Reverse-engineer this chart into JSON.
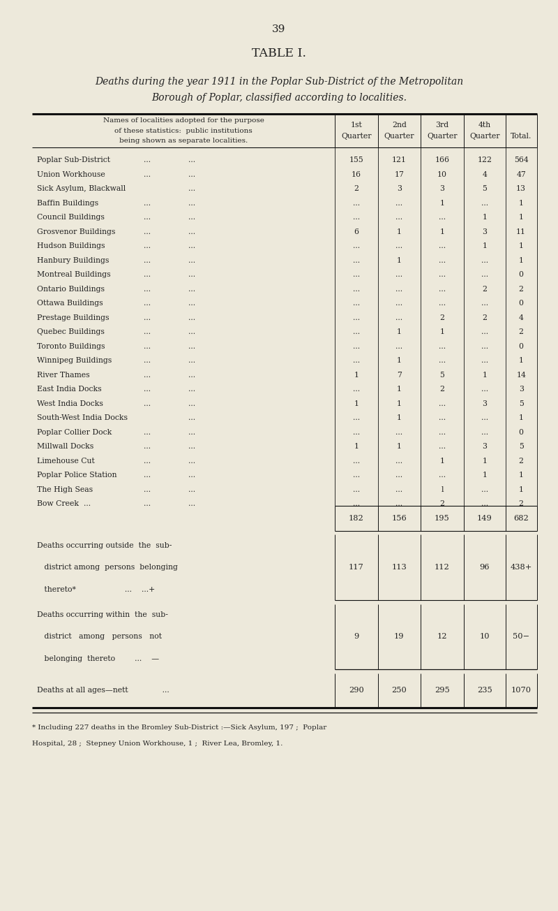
{
  "page_number": "39",
  "table_title": "TABLE I.",
  "subtitle_line1": "Deaths during the year 1911 in the Poplar Sub-District of the Metropolitan",
  "subtitle_line2": "Borough of Poplar, classified according to localities.",
  "header_col_lines": [
    "Names of localities adopted for the purpose",
    "of these statistics:  public institutions",
    "being shown as separate localities."
  ],
  "col_headers": [
    "1st",
    "2nd",
    "3rd",
    "4th",
    ""
  ],
  "col_headers2": [
    "Quarter",
    "Quarter",
    "Quarter",
    "Quarter",
    "Total."
  ],
  "rows": [
    {
      "name": "Poplar Sub-District",
      "dots1": "...",
      "dots2": "...",
      "q1": "155",
      "q2": "121",
      "q3": "166",
      "q4": "122",
      "total": "564"
    },
    {
      "name": "Union Workhouse",
      "dots1": "...",
      "dots2": "...",
      "q1": "16",
      "q2": "17",
      "q3": "10",
      "q4": "4",
      "total": "47"
    },
    {
      "name": "Sick Asylum, Blackwall",
      "dots1": "",
      "dots2": "...",
      "q1": "2",
      "q2": "3",
      "q3": "3",
      "q4": "5",
      "total": "13"
    },
    {
      "name": "Baffin Buildings",
      "dots1": "...",
      "dots2": "...",
      "q1": "...",
      "q2": "...",
      "q3": "1",
      "q4": "...",
      "total": "1"
    },
    {
      "name": "Council Buildings",
      "dots1": "...",
      "dots2": "...",
      "q1": "...",
      "q2": "...",
      "q3": "...",
      "q4": "1",
      "total": "1"
    },
    {
      "name": "Grosvenor Buildings",
      "dots1": "...",
      "dots2": "...",
      "q1": "6",
      "q2": "1",
      "q3": "1",
      "q4": "3",
      "total": "11"
    },
    {
      "name": "Hudson Buildings",
      "dots1": "...",
      "dots2": "...",
      "q1": "...",
      "q2": "...",
      "q3": "...",
      "q4": "1",
      "total": "1"
    },
    {
      "name": "Hanbury Buildings",
      "dots1": "...",
      "dots2": "...",
      "q1": "...",
      "q2": "1",
      "q3": "...",
      "q4": "...",
      "total": "1"
    },
    {
      "name": "Montreal Buildings",
      "dots1": "...",
      "dots2": "...",
      "q1": "...",
      "q2": "...",
      "q3": "...",
      "q4": "...",
      "total": "0"
    },
    {
      "name": "Ontario Buildings",
      "dots1": "...",
      "dots2": "...",
      "q1": "...",
      "q2": "...",
      "q3": "...",
      "q4": "2",
      "total": "2"
    },
    {
      "name": "Ottawa Buildings",
      "dots1": "...",
      "dots2": "...",
      "q1": "...",
      "q2": "...",
      "q3": "...",
      "q4": "...",
      "total": "0"
    },
    {
      "name": "Prestage Buildings",
      "dots1": "...",
      "dots2": "...",
      "q1": "...",
      "q2": "...",
      "q3": "2",
      "q4": "2",
      "total": "4"
    },
    {
      "name": "Quebec Buildings",
      "dots1": "...",
      "dots2": "...",
      "q1": "...",
      "q2": "1",
      "q3": "1",
      "q4": "...",
      "total": "2"
    },
    {
      "name": "Toronto Buildings",
      "dots1": "...",
      "dots2": "...",
      "q1": "...",
      "q2": "...",
      "q3": "...",
      "q4": "...",
      "total": "0"
    },
    {
      "name": "Winnipeg Buildings",
      "dots1": "...",
      "dots2": "...",
      "q1": "...",
      "q2": "1",
      "q3": "...",
      "q4": "...",
      "total": "1"
    },
    {
      "name": "River Thames",
      "dots1": "...",
      "dots2": "...",
      "q1": "1",
      "q2": "7",
      "q3": "5",
      "q4": "1",
      "total": "14"
    },
    {
      "name": "East India Docks",
      "dots1": "...",
      "dots2": "...",
      "q1": "...",
      "q2": "1",
      "q3": "2",
      "q4": "...",
      "total": "3"
    },
    {
      "name": "West India Docks",
      "dots1": "...",
      "dots2": "...",
      "q1": "1",
      "q2": "1",
      "q3": "...",
      "q4": "3",
      "total": "5"
    },
    {
      "name": "South-West India Docks",
      "dots1": "",
      "dots2": "...",
      "q1": "...",
      "q2": "1",
      "q3": "...",
      "q4": "...",
      "total": "1"
    },
    {
      "name": "Poplar Collier Dock",
      "dots1": "...",
      "dots2": "...",
      "q1": "...",
      "q2": "...",
      "q3": "...",
      "q4": "...",
      "total": "0"
    },
    {
      "name": "Millwall Docks",
      "dots1": "...",
      "dots2": "...",
      "q1": "1",
      "q2": "1",
      "q3": "...",
      "q4": "3",
      "total": "5"
    },
    {
      "name": "Limehouse Cut",
      "dots1": "...",
      "dots2": "...",
      "q1": "...",
      "q2": "...",
      "q3": "1",
      "q4": "1",
      "total": "2"
    },
    {
      "name": "Poplar Police Station",
      "dots1": "...",
      "dots2": "...",
      "q1": "...",
      "q2": "...",
      "q3": "...",
      "q4": "1",
      "total": "1"
    },
    {
      "name": "The High Seas",
      "dots1": "...",
      "dots2": "...",
      "q1": "...",
      "q2": "...",
      "q3": "l",
      "q4": "...",
      "total": "1"
    },
    {
      "name": "Bow Creek  ...",
      "dots1": "...",
      "dots2": "...",
      "q1": "...",
      "q2": "...",
      "q3": "2",
      "q4": "...",
      "total": "2"
    }
  ],
  "subtotal": {
    "q1": "182",
    "q2": "156",
    "q3": "195",
    "q4": "149",
    "total": "682"
  },
  "outside_label": [
    "Deaths occurring outside  the  sub-",
    "   district among  persons  belonging",
    "   thereto*                    ...    ...+"
  ],
  "outside": {
    "q1": "117",
    "q2": "113",
    "q3": "112",
    "q4": "96",
    "total": "438+"
  },
  "within_label": [
    "Deaths occurring within  the  sub-",
    "   district   among   persons   not",
    "   belonging  thereto        ...    —"
  ],
  "within": {
    "q1": "9",
    "q2": "19",
    "q3": "12",
    "q4": "10",
    "total": "50−"
  },
  "nett_label": "Deaths at all ages—nett              ...",
  "nett": {
    "q1": "290",
    "q2": "250",
    "q3": "295",
    "q4": "235",
    "total": "1070"
  },
  "footnote_line1": "* Including 227 deaths in the Bromley Sub-District :—Sick Asylum, 197 ;  Poplar",
  "footnote_line2": "Hospital, 28 ;  Stepney Union Workhouse, 1 ;  River Lea, Bromley, 1.",
  "bg_color": "#ede9db",
  "text_color": "#222222",
  "line_color": "#111111"
}
